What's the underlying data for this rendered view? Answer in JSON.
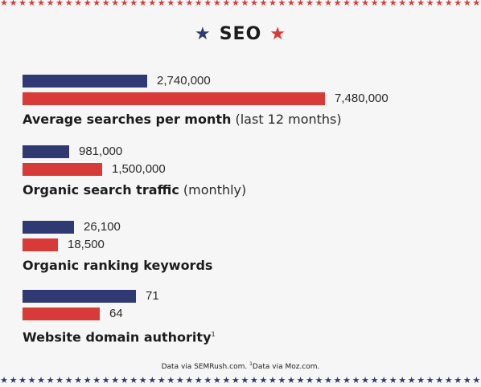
{
  "title": "SEO",
  "colors": {
    "series_a": "#2f3a73",
    "series_b": "#d83a37"
  },
  "chart_data": {
    "type": "bar",
    "orientation": "horizontal",
    "grid": false,
    "groups": [
      {
        "label": "Average searches per month",
        "note": "(last 12 months)",
        "sup": "",
        "values": [
          2740000,
          7480000
        ],
        "value_labels": [
          "2,740,000",
          "7,480,000"
        ]
      },
      {
        "label": "Organic search traffic",
        "note": "(monthly)",
        "sup": "",
        "values": [
          981000,
          1500000
        ],
        "value_labels": [
          "981,000",
          "1,500,000"
        ]
      },
      {
        "label": "Organic ranking keywords",
        "note": "",
        "sup": "",
        "values": [
          26100,
          18500
        ],
        "value_labels": [
          "26,100",
          "18,500"
        ]
      },
      {
        "label": "Website domain authority",
        "note": "",
        "sup": "1",
        "values": [
          71,
          64
        ],
        "value_labels": [
          "71",
          "64"
        ]
      }
    ]
  },
  "footnote": {
    "text1": "Data via SEMRush.com. ",
    "sup": "1",
    "text2": "Data via Moz.com."
  }
}
